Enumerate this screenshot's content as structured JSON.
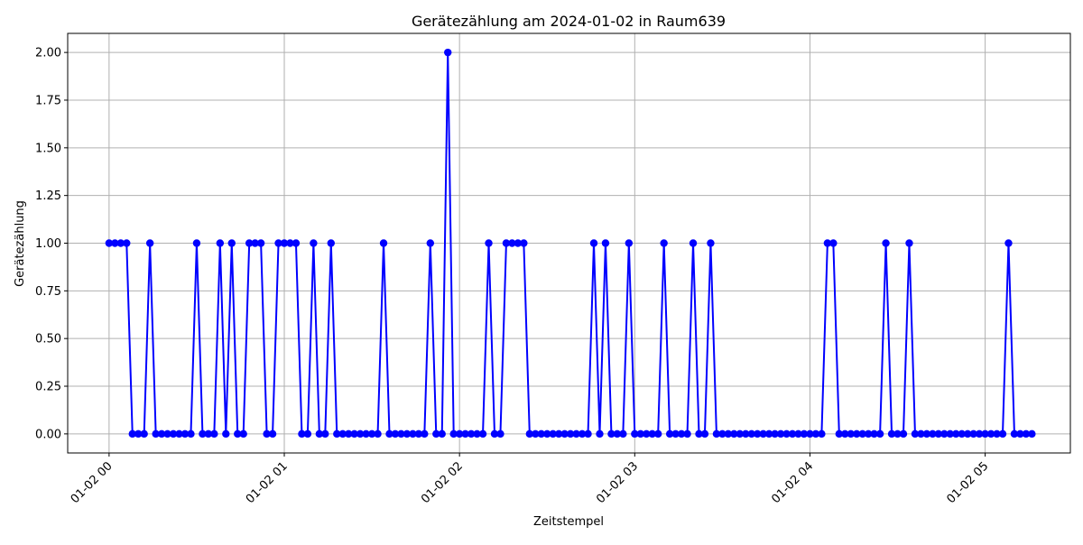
{
  "chart_data": {
    "type": "line",
    "title": "Gerätezählung am 2024-01-02 in Raum639",
    "xlabel": "Zeitstempel",
    "ylabel": "Gerätezählung",
    "x_axis": {
      "kind": "datetime",
      "start": "2024-01-02 00:00",
      "end": "2024-01-02 05:15",
      "interval_minutes": 2,
      "ticks": [
        {
          "time": "2024-01-02 00:00",
          "label": "01-02 00"
        },
        {
          "time": "2024-01-02 01:00",
          "label": "01-02 01"
        },
        {
          "time": "2024-01-02 02:00",
          "label": "01-02 02"
        },
        {
          "time": "2024-01-02 03:00",
          "label": "01-02 03"
        },
        {
          "time": "2024-01-02 04:00",
          "label": "01-02 04"
        },
        {
          "time": "2024-01-02 05:00",
          "label": "01-02 05"
        }
      ]
    },
    "ylim": [
      -0.1,
      2.1
    ],
    "yticks": [
      {
        "value": 0.0,
        "label": "0.00"
      },
      {
        "value": 0.25,
        "label": "0.25"
      },
      {
        "value": 0.5,
        "label": "0.50"
      },
      {
        "value": 0.75,
        "label": "0.75"
      },
      {
        "value": 1.0,
        "label": "1.00"
      },
      {
        "value": 1.25,
        "label": "1.25"
      },
      {
        "value": 1.5,
        "label": "1.50"
      },
      {
        "value": 1.75,
        "label": "1.75"
      },
      {
        "value": 2.0,
        "label": "2.00"
      }
    ],
    "grid": true,
    "legend": "none",
    "series": [
      {
        "color": "#0000ff",
        "marker": "circle",
        "values": [
          1,
          1,
          1,
          1,
          0,
          0,
          0,
          1,
          0,
          0,
          0,
          0,
          0,
          0,
          0,
          1,
          0,
          0,
          0,
          1,
          0,
          1,
          0,
          0,
          1,
          1,
          1,
          0,
          0,
          1,
          1,
          1,
          1,
          0,
          0,
          1,
          0,
          0,
          1,
          0,
          0,
          0,
          0,
          0,
          0,
          0,
          0,
          1,
          0,
          0,
          0,
          0,
          0,
          0,
          0,
          1,
          0,
          0,
          2,
          0,
          0,
          0,
          0,
          0,
          0,
          1,
          0,
          0,
          1,
          1,
          1,
          1,
          0,
          0,
          0,
          0,
          0,
          0,
          0,
          0,
          0,
          0,
          0,
          1,
          0,
          1,
          0,
          0,
          0,
          1,
          0,
          0,
          0,
          0,
          0,
          1,
          0,
          0,
          0,
          0,
          1,
          0,
          0,
          1,
          0,
          0,
          0,
          0,
          0,
          0,
          0,
          0,
          0,
          0,
          0,
          0,
          0,
          0,
          0,
          0,
          0,
          0,
          0,
          1,
          1,
          0,
          0,
          0,
          0,
          0,
          0,
          0,
          0,
          1,
          0,
          0,
          0,
          1,
          0,
          0,
          0,
          0,
          0,
          0,
          0,
          0,
          0,
          0,
          0,
          0,
          0,
          0,
          0,
          0,
          1,
          0,
          0,
          0,
          0
        ]
      }
    ]
  }
}
